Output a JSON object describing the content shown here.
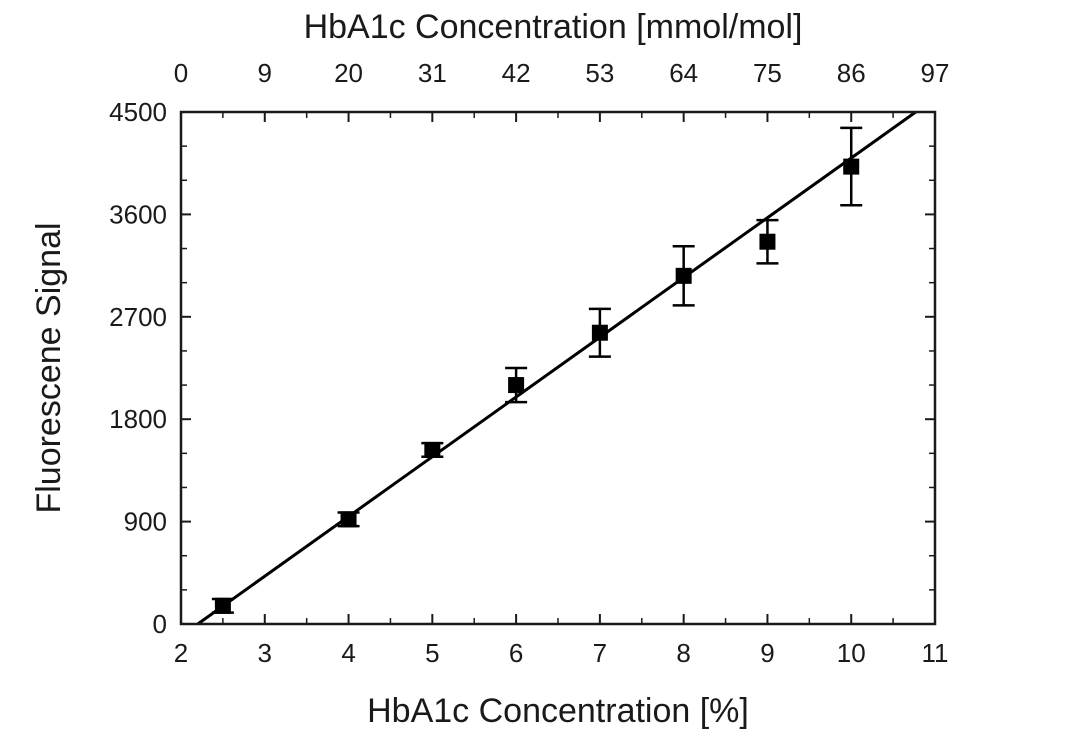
{
  "chart_data": {
    "type": "scatter",
    "title": "",
    "xlabel": "HbA1c Concentration [%]",
    "x2label": "HbA1c Concentration [mmol/mol]",
    "ylabel": "Fluorescene Signal",
    "xlim": [
      2,
      11
    ],
    "ylim": [
      0,
      4500
    ],
    "x_ticks": [
      2,
      3,
      4,
      5,
      6,
      7,
      8,
      9,
      10,
      11
    ],
    "x2_ticks": [
      0,
      9,
      20,
      31,
      42,
      53,
      64,
      75,
      86,
      97
    ],
    "y_ticks": [
      0,
      900,
      1800,
      2700,
      3600,
      4500
    ],
    "grid": false,
    "legend": "none",
    "series": [
      {
        "x": [
          2.5,
          4,
          5,
          6,
          7,
          8,
          9,
          10
        ],
        "y": [
          160,
          920,
          1530,
          2100,
          2560,
          3060,
          3360,
          4020
        ],
        "yerr": [
          60,
          60,
          60,
          150,
          210,
          260,
          190,
          340
        ]
      }
    ],
    "fit_line": {
      "x": [
        2.2,
        10.77
      ],
      "y": [
        0,
        4500
      ]
    },
    "colors": {
      "marker": "#000000",
      "axis": "#1a1a1a"
    }
  }
}
